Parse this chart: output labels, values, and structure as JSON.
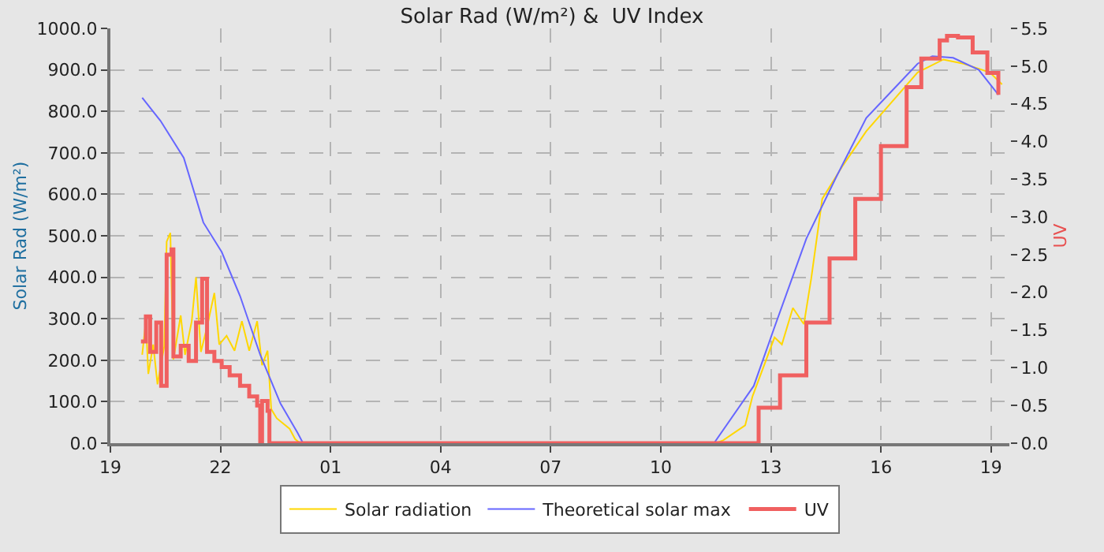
{
  "chart_data": {
    "type": "line",
    "title": "Solar Rad (W/m²) &  UV Index",
    "ylabel": "Solar Rad (W/m²)",
    "y2label": "UV",
    "xlim": [
      "--06-01T19:00",
      "--06-02T19:30"
    ],
    "xticks": [
      {
        "value": "--06-01T19:00",
        "label": "19"
      },
      {
        "value": "--06-01T22:00",
        "label": "22"
      },
      {
        "value": "--06-02T01:00",
        "label": "01"
      },
      {
        "value": "--06-02T04:00",
        "label": "04"
      },
      {
        "value": "--06-02T07:00",
        "label": "07"
      },
      {
        "value": "--06-02T10:00",
        "label": "10"
      },
      {
        "value": "--06-02T13:00",
        "label": "13"
      },
      {
        "value": "--06-02T16:00",
        "label": "16"
      },
      {
        "value": "--06-02T19:00",
        "label": "19"
      }
    ],
    "ylim": [
      0,
      1000
    ],
    "yticks": [
      {
        "value": 0,
        "label": "0.0"
      },
      {
        "value": 100,
        "label": "100.0"
      },
      {
        "value": 200,
        "label": "200.0"
      },
      {
        "value": 300,
        "label": "300.0"
      },
      {
        "value": 400,
        "label": "400.0"
      },
      {
        "value": 500,
        "label": "500.0"
      },
      {
        "value": 600,
        "label": "600.0"
      },
      {
        "value": 700,
        "label": "700.0"
      },
      {
        "value": 800,
        "label": "800.0"
      },
      {
        "value": 900,
        "label": "900.0"
      },
      {
        "value": 1000,
        "label": "1000.0"
      }
    ],
    "y2lim": [
      0,
      5.5
    ],
    "y2ticks": [
      {
        "value": 0,
        "label": "0.0"
      },
      {
        "value": 0.5,
        "label": "0.5"
      },
      {
        "value": 1,
        "label": "1.0"
      },
      {
        "value": 1.5,
        "label": "1.5"
      },
      {
        "value": 2,
        "label": "2.0"
      },
      {
        "value": 2.5,
        "label": "2.5"
      },
      {
        "value": 3,
        "label": "3.0"
      },
      {
        "value": 3.5,
        "label": "3.5"
      },
      {
        "value": 4,
        "label": "4.0"
      },
      {
        "value": 4.5,
        "label": "4.5"
      },
      {
        "value": 5,
        "label": "5.0"
      },
      {
        "value": 5.5,
        "label": "5.5"
      }
    ],
    "grid": true,
    "legend": "bottom",
    "marker": "none",
    "series": [
      {
        "name": "Solar radiation",
        "color": "#ffd700",
        "x": [
          "--06-01T19:52",
          "--06-01T19:58",
          "--06-01T20:02",
          "--06-01T20:10",
          "--06-01T20:17",
          "--06-01T20:28",
          "--06-01T20:32",
          "--06-01T20:38",
          "--06-01T20:40",
          "--06-01T20:43",
          "--06-01T20:55",
          "--06-01T21:02",
          "--06-01T21:13",
          "--06-01T21:20",
          "--06-01T21:28",
          "--06-01T21:38",
          "--06-01T21:50",
          "--06-01T21:58",
          "--06-01T22:10",
          "--06-01T22:23",
          "--06-01T22:35",
          "--06-01T22:47",
          "--06-01T23:00",
          "--06-01T23:08",
          "--06-01T23:17",
          "--06-01T23:23",
          "--06-01T23:32",
          "--06-01T23:53",
          "--06-02T00:02",
          "--06-02T00:10",
          "--06-02T00:15",
          "--06-02T11:30",
          "--06-02T11:42",
          "--06-02T12:18",
          "--06-02T12:30",
          "--06-02T13:06",
          "--06-02T13:18",
          "--06-02T13:36",
          "--06-02T13:54",
          "--06-02T14:06",
          "--06-02T14:24",
          "--06-02T14:58",
          "--06-02T15:36",
          "--06-02T16:18",
          "--06-02T17:00",
          "--06-02T17:42",
          "--06-02T18:15",
          "--06-02T18:58",
          "--06-02T19:18"
        ],
        "values": [
          213,
          294,
          167,
          238,
          142,
          233,
          486,
          507,
          379,
          202,
          308,
          213,
          294,
          400,
          220,
          280,
          362,
          238,
          259,
          223,
          294,
          223,
          294,
          188,
          223,
          82,
          60,
          35,
          10,
          0,
          0,
          0,
          7,
          43,
          113,
          255,
          238,
          326,
          287,
          397,
          589,
          670,
          752,
          823,
          894,
          925,
          915,
          894,
          865
        ]
      },
      {
        "name": "Theoretical solar max",
        "color": "#6666ff",
        "x": [
          "--06-01T19:52",
          "--06-01T20:22",
          "--06-01T21:00",
          "--06-01T21:32",
          "--06-01T22:02",
          "--06-01T22:32",
          "--06-01T23:05",
          "--06-01T23:38",
          "--06-02T00:06",
          "--06-02T00:15",
          "--06-02T11:27",
          "--06-02T12:32",
          "--06-02T13:06",
          "--06-02T13:58",
          "--06-02T14:48",
          "--06-02T15:36",
          "--06-02T16:28",
          "--06-02T17:00",
          "--06-02T17:24",
          "--06-02T17:58",
          "--06-02T18:40",
          "--06-02T19:12"
        ],
        "values": [
          833,
          777,
          688,
          532,
          461,
          355,
          213,
          96,
          25,
          0,
          0,
          138,
          280,
          493,
          645,
          784,
          865,
          915,
          933,
          929,
          900,
          840
        ]
      },
      {
        "name": "UV",
        "color": "#f06060",
        "type": "step",
        "axis": "y2",
        "x": [
          "--06-01T19:50",
          "--06-01T19:58",
          "--06-01T20:05",
          "--06-01T20:15",
          "--06-01T20:23",
          "--06-01T20:32",
          "--06-01T20:40",
          "--06-01T20:43",
          "--06-01T20:55",
          "--06-01T21:08",
          "--06-01T21:20",
          "--06-01T21:30",
          "--06-01T21:38",
          "--06-01T21:50",
          "--06-01T22:02",
          "--06-01T22:15",
          "--06-01T22:32",
          "--06-01T22:47",
          "--06-01T23:00",
          "--06-01T23:05",
          "--06-01T23:08",
          "--06-01T23:17",
          "--06-01T23:20",
          "--06-02T12:40",
          "--06-02T13:15",
          "--06-02T13:58",
          "--06-02T14:36",
          "--06-02T15:18",
          "--06-02T16:00",
          "--06-02T16:42",
          "--06-02T17:06",
          "--06-02T17:36",
          "--06-02T17:48",
          "--06-02T18:06",
          "--06-02T18:30",
          "--06-02T18:54",
          "--06-02T19:12"
        ],
        "values": [
          1.35,
          1.68,
          1.21,
          1.6,
          0.76,
          2.5,
          2.57,
          1.15,
          1.29,
          1.09,
          1.6,
          2.18,
          1.21,
          1.09,
          1.01,
          0.9,
          0.76,
          0.62,
          0.5,
          0,
          0.56,
          0.43,
          0,
          0.47,
          0.9,
          1.6,
          2.45,
          3.24,
          3.94,
          4.72,
          5.1,
          5.34,
          5.4,
          5.38,
          5.18,
          4.91,
          4.62
        ]
      }
    ]
  }
}
